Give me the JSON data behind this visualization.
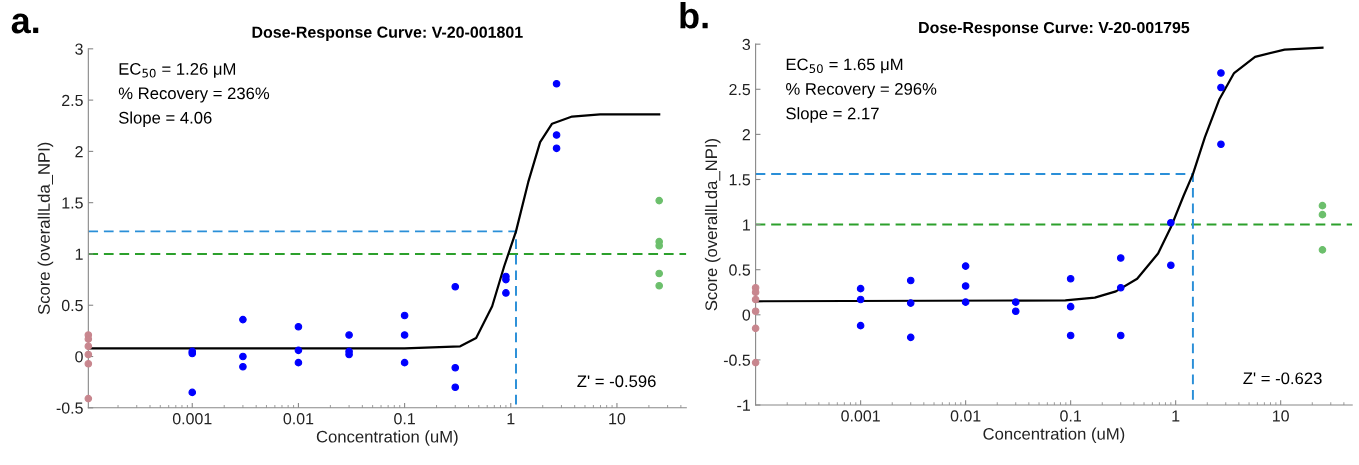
{
  "chart_data": [
    {
      "type": "scatter",
      "title": "Dose-Response Curve: V-20-001801",
      "xlabel": "Concentration (uM)",
      "ylabel": "Score (overallLda_NPI)",
      "log": "x",
      "xlim": [
        0.000105,
        45
      ],
      "xticks": [
        0.001,
        0.01,
        0.1,
        1,
        10
      ],
      "ylim": [
        -0.5,
        3
      ],
      "yticks": [
        -0.5,
        0,
        0.5,
        1,
        1.5,
        2,
        2.5,
        3
      ],
      "annotations": [
        "a.",
        "EC$_{50}$ = 1.26 μM",
        "% Recovery = 236%",
        "Slope = 4.06",
        "Z' = -0.596"
      ],
      "ref_lines": [
        {
          "axis": "y",
          "value": 1,
          "color": "#2ca02c",
          "line_style": "dashed"
        }
      ],
      "series": [
        {
          "type": "line",
          "color": "#2a8fd8",
          "line_style": "dashed",
          "x": [
            0.000105,
            1.12,
            1.12
          ],
          "values": [
            1.22,
            1.22,
            -0.5
          ]
        },
        {
          "type": "line",
          "color": "#000000",
          "line_style": "solid",
          "x": [
            0.000105,
            0.1,
            0.334,
            0.472,
            0.668,
            0.867,
            1.12,
            1.46,
            1.89,
            2.45,
            3.78,
            6.95,
            25
          ],
          "values": [
            0.08,
            0.08,
            0.1,
            0.18,
            0.49,
            0.88,
            1.22,
            1.7,
            2.09,
            2.27,
            2.34,
            2.36,
            2.36
          ]
        },
        {
          "color": "#0000ff",
          "marker": "circle",
          "x": [
            0.001,
            0.001,
            0.001,
            0.003,
            0.003,
            0.003,
            0.01,
            0.01,
            0.01,
            0.03,
            0.03,
            0.03,
            0.1,
            0.1,
            0.1,
            0.3,
            0.3,
            0.3,
            0.9,
            0.9,
            0.9,
            2.7,
            2.7,
            2.7
          ],
          "values": [
            0.05,
            0.03,
            -0.35,
            0.36,
            0.0,
            -0.1,
            0.29,
            0.06,
            -0.06,
            0.21,
            0.05,
            0.02,
            0.4,
            0.21,
            -0.06,
            0.68,
            -0.11,
            -0.3,
            0.78,
            0.75,
            0.62,
            2.66,
            2.16,
            2.03
          ]
        },
        {
          "color": "#c8868e",
          "marker": "circle",
          "x": [
            0.000105,
            0.000105,
            0.000105,
            0.000105,
            0.000105,
            0.000105
          ],
          "values": [
            0.21,
            0.17,
            0.1,
            0.02,
            -0.07,
            -0.41
          ]
        },
        {
          "color": "#6cbf6c",
          "marker": "circle",
          "x": [
            25,
            25,
            25,
            25,
            25
          ],
          "values": [
            1.52,
            1.12,
            1.08,
            0.81,
            0.69
          ]
        }
      ]
    },
    {
      "type": "scatter",
      "title": "Dose-Response Curve: V-20-001795",
      "xlabel": "Concentration (uM)",
      "ylabel": "Score (overallLda_NPI)",
      "log": "x",
      "xlim": [
        0.0001,
        48
      ],
      "xticks": [
        0.001,
        0.01,
        0.1,
        1,
        10
      ],
      "ylim": [
        -1,
        3
      ],
      "yticks": [
        -1,
        -0.5,
        0,
        0.5,
        1,
        1.5,
        2,
        2.5,
        3
      ],
      "annotations": [
        "b.",
        "EC$_{50}$ = 1.65 μM",
        "% Recovery = 296%",
        "Slope = 2.17",
        "Z' = -0.623"
      ],
      "ref_lines": [
        {
          "axis": "y",
          "value": 1,
          "color": "#2ca02c",
          "line_style": "dashed"
        }
      ],
      "series": [
        {
          "type": "line",
          "color": "#2a8fd8",
          "line_style": "dashed",
          "x": [
            0.0001,
            1.46,
            1.46
          ],
          "values": [
            1.56,
            1.56,
            -1
          ]
        },
        {
          "type": "line",
          "color": "#000000",
          "line_style": "solid",
          "x": [
            0.0001,
            0.089,
            0.17,
            0.27,
            0.43,
            0.68,
            0.9,
            1.19,
            1.46,
            1.9,
            2.61,
            3.6,
            5.7,
            10.9,
            25
          ],
          "values": [
            0.15,
            0.16,
            0.19,
            0.26,
            0.4,
            0.68,
            0.97,
            1.32,
            1.56,
            1.97,
            2.39,
            2.68,
            2.86,
            2.94,
            2.96
          ]
        },
        {
          "color": "#0000ff",
          "marker": "circle",
          "x": [
            0.001,
            0.001,
            0.001,
            0.003,
            0.003,
            0.003,
            0.01,
            0.01,
            0.01,
            0.03,
            0.03,
            0.1,
            0.1,
            0.1,
            0.3,
            0.3,
            0.3,
            0.9,
            0.9,
            2.7,
            2.7,
            2.7
          ],
          "values": [
            0.29,
            0.17,
            -0.12,
            0.38,
            0.13,
            -0.25,
            0.54,
            0.32,
            0.14,
            0.14,
            0.04,
            0.4,
            0.09,
            -0.23,
            0.63,
            0.3,
            -0.23,
            1.02,
            0.55,
            2.68,
            2.52,
            1.89
          ]
        },
        {
          "color": "#c8868e",
          "marker": "circle",
          "x": [
            0.0001,
            0.0001,
            0.0001,
            0.0001,
            0.0001,
            0.0001
          ],
          "values": [
            0.3,
            0.25,
            0.17,
            0.04,
            -0.15,
            -0.53
          ]
        },
        {
          "color": "#6cbf6c",
          "marker": "circle",
          "x": [
            25,
            25,
            25
          ],
          "values": [
            1.21,
            1.11,
            0.72
          ]
        }
      ]
    }
  ]
}
